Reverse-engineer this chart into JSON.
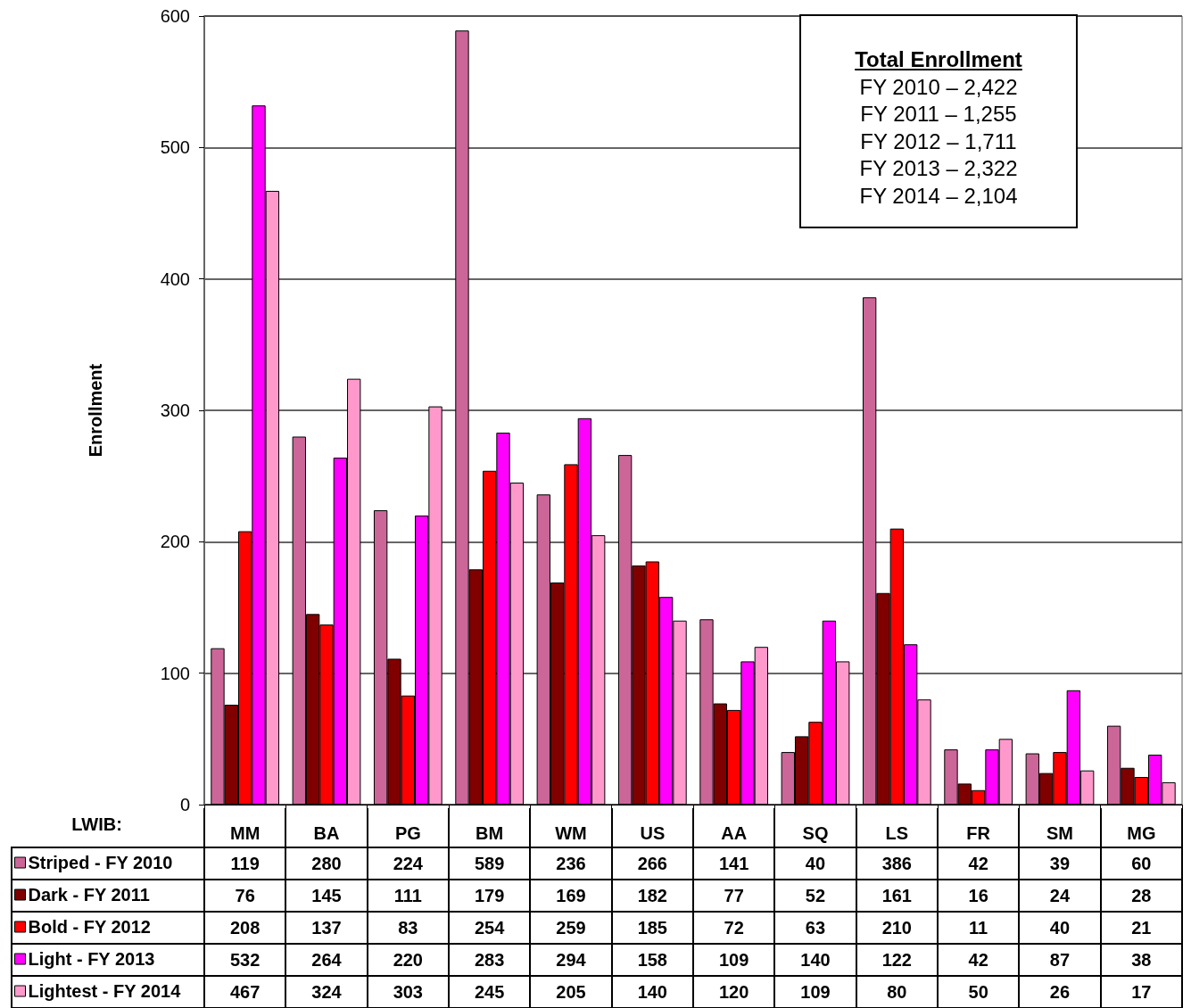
{
  "chart_data": {
    "type": "bar",
    "ylabel": "Enrollment",
    "legend_title": "LWIB:",
    "categories": [
      "MM",
      "BA",
      "PG",
      "BM",
      "WM",
      "US",
      "AA",
      "SQ",
      "LS",
      "FR",
      "SM",
      "MG"
    ],
    "series": [
      {
        "name": "Striped - FY 2010",
        "color": "#cc6699",
        "values": [
          119,
          280,
          224,
          589,
          236,
          266,
          141,
          40,
          386,
          42,
          39,
          60
        ]
      },
      {
        "name": "Dark - FY 2011",
        "color": "#800000",
        "values": [
          76,
          145,
          111,
          179,
          169,
          182,
          77,
          52,
          161,
          16,
          24,
          28
        ]
      },
      {
        "name": "Bold - FY 2012",
        "color": "#ff0000",
        "values": [
          208,
          137,
          83,
          254,
          259,
          185,
          72,
          63,
          210,
          11,
          40,
          21
        ]
      },
      {
        "name": "Light - FY 2013",
        "color": "#ff00ff",
        "values": [
          532,
          264,
          220,
          283,
          294,
          158,
          109,
          140,
          122,
          42,
          87,
          38
        ]
      },
      {
        "name": "Lightest - FY 2014",
        "color": "#ff99cc",
        "values": [
          467,
          324,
          303,
          245,
          205,
          140,
          120,
          109,
          80,
          50,
          26,
          17
        ]
      }
    ],
    "ylim": [
      0,
      600
    ],
    "yticks": [
      0,
      100,
      200,
      300,
      400,
      500,
      600
    ],
    "grid": "y",
    "legend": "bottom left",
    "data_labels": true,
    "annotations": [
      "Total Enrollment",
      "FY 2010 – 2,422",
      "FY 2011 – 1,255",
      "FY 2012 – 1,711",
      "FY 2013 – 2,322",
      "FY 2014 – 2,104"
    ]
  }
}
